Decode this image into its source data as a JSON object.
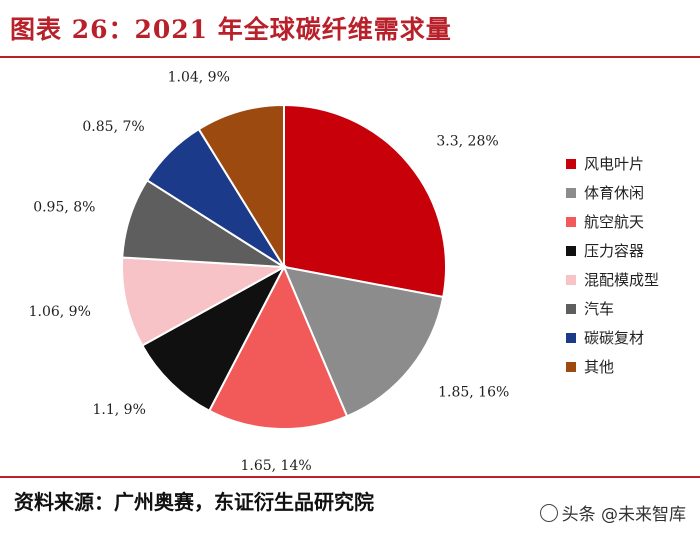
{
  "header": {
    "title": "图表 26：2021 年全球碳纤维需求量"
  },
  "footer": {
    "source": "资料来源：广州奥赛，东证衍生品研究院"
  },
  "watermark": {
    "text": "头条 @未来智库"
  },
  "chart_data": {
    "type": "pie",
    "title": "2021 年全球碳纤维需求量",
    "start": "top",
    "direction": "clockwise",
    "legend_position": "right",
    "slices": [
      {
        "name": "风电叶片",
        "value": 3.3,
        "label": "3.3, 28%",
        "color": "#c8000a"
      },
      {
        "name": "体育休闲",
        "value": 1.85,
        "label": "1.85, 16%",
        "color": "#8c8c8c"
      },
      {
        "name": "航空航天",
        "value": 1.65,
        "label": "1.65, 14%",
        "color": "#f25a5a"
      },
      {
        "name": "压力容器",
        "value": 1.1,
        "label": "1.1, 9%",
        "color": "#101010"
      },
      {
        "name": "混配模成型",
        "value": 1.06,
        "label": "1.06, 9%",
        "color": "#f8c3c6"
      },
      {
        "name": "汽车",
        "value": 0.95,
        "label": "0.95, 8%",
        "color": "#5e5e5e"
      },
      {
        "name": "碳碳复材",
        "value": 0.85,
        "label": "0.85, 7%",
        "color": "#1c3a8a"
      },
      {
        "name": "其他",
        "value": 1.04,
        "label": "1.04, 9%",
        "color": "#9c4a0f"
      }
    ]
  }
}
